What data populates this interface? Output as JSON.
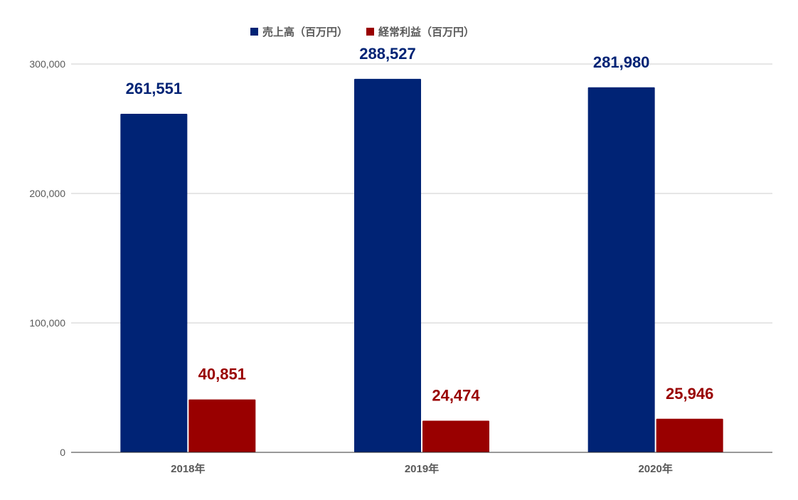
{
  "chart_data": {
    "type": "bar",
    "categories": [
      "2018年",
      "2019年",
      "2020年"
    ],
    "series": [
      {
        "name": "売上高（百万円）",
        "values": [
          261551,
          288527,
          281980
        ],
        "labels": [
          "261,551",
          "288,527",
          "281,980"
        ],
        "color": "#002375"
      },
      {
        "name": "経常利益（百万円）",
        "values": [
          40851,
          24474,
          25946
        ],
        "labels": [
          "40,851",
          "24,474",
          "25,946"
        ],
        "color": "#990000"
      }
    ],
    "ylim": [
      0,
      300000
    ],
    "yticks": [
      0,
      100000,
      200000,
      300000
    ],
    "ytick_labels": [
      "0",
      "100,000",
      "200,000",
      "300,000"
    ],
    "grid": true,
    "legend_position": "top-center",
    "title": "",
    "xlabel": "",
    "ylabel": ""
  }
}
